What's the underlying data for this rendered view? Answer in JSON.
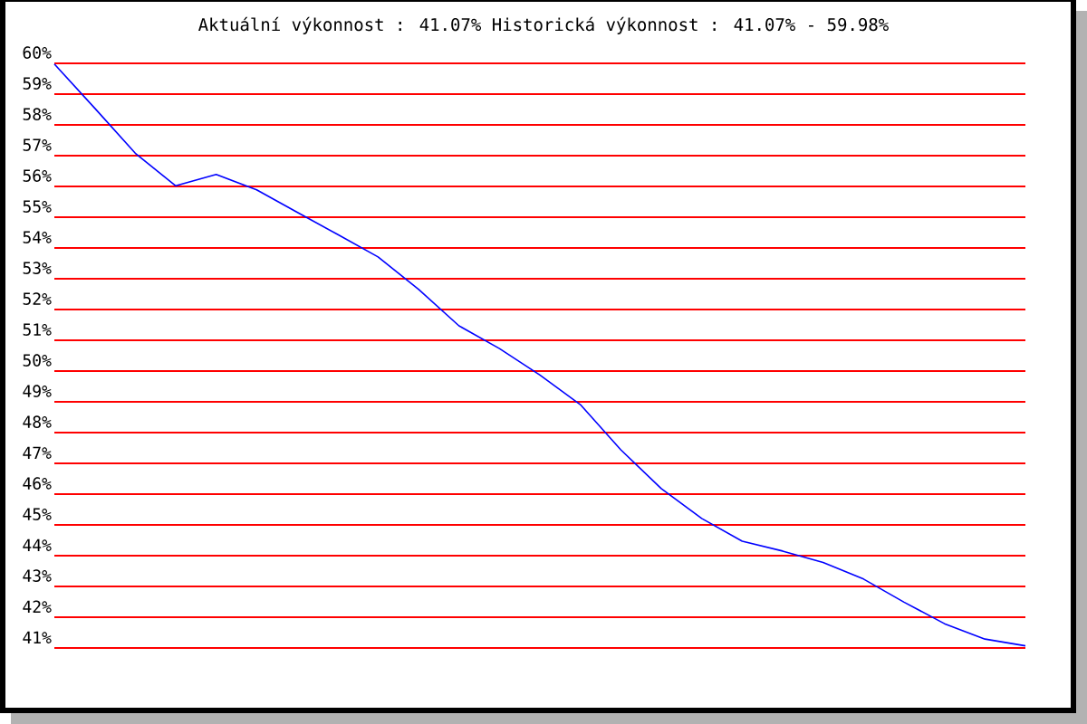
{
  "chart_data": {
    "type": "line",
    "title": "Aktuální výkonnost : 41.07%  Historická výkonnost : 41.07% - 59.98%",
    "categories": [
      null,
      null,
      null,
      null,
      null,
      null,
      null,
      null,
      null,
      null,
      null,
      null,
      null,
      null,
      null,
      null,
      null,
      null,
      null,
      null,
      null,
      null,
      null,
      null,
      null
    ],
    "series": [
      {
        "color": "#0000ff",
        "values": [
          59.98,
          58.54,
          57.08,
          56.02,
          56.39,
          55.89,
          55.16,
          54.44,
          53.71,
          52.66,
          51.47,
          50.73,
          49.87,
          48.91,
          47.44,
          46.18,
          45.21,
          44.47,
          44.15,
          43.78,
          43.24,
          42.49,
          41.79,
          41.29,
          41.07
        ]
      }
    ],
    "ylim": [
      41,
      60
    ],
    "yticks": [
      {
        "value": 41,
        "label": "41%"
      },
      {
        "value": 42,
        "label": "42%"
      },
      {
        "value": 43,
        "label": "43%"
      },
      {
        "value": 44,
        "label": "44%"
      },
      {
        "value": 45,
        "label": "45%"
      },
      {
        "value": 46,
        "label": "46%"
      },
      {
        "value": 47,
        "label": "47%"
      },
      {
        "value": 48,
        "label": "48%"
      },
      {
        "value": 49,
        "label": "49%"
      },
      {
        "value": 50,
        "label": "50%"
      },
      {
        "value": 51,
        "label": "51%"
      },
      {
        "value": 52,
        "label": "52%"
      },
      {
        "value": 53,
        "label": "53%"
      },
      {
        "value": 54,
        "label": "54%"
      },
      {
        "value": 55,
        "label": "55%"
      },
      {
        "value": 56,
        "label": "56%"
      },
      {
        "value": 57,
        "label": "57%"
      },
      {
        "value": 58,
        "label": "58%"
      },
      {
        "value": 59,
        "label": "59%"
      },
      {
        "value": 60,
        "label": "60%"
      }
    ],
    "grid": "y",
    "tick_labels": "y",
    "legend": false,
    "marker": "none",
    "line_style": "solid"
  }
}
